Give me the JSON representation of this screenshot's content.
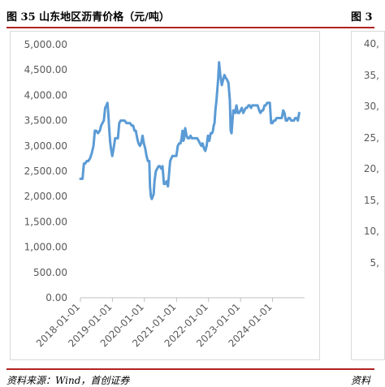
{
  "figure": {
    "title": "图 35 山东地区沥青价格（元/吨）",
    "source": "资料来源：Wind，首创证券",
    "next_title": "图 3",
    "next_source": "资料",
    "next_ticks": [
      "40,",
      "35,",
      "30,",
      "25,",
      "20,",
      "15,",
      "10,",
      "5,"
    ]
  },
  "chart_data": {
    "type": "line",
    "title": "图 35 山东地区沥青价格（元/吨）",
    "xlabel": "",
    "ylabel": "",
    "ylim": [
      0,
      5000
    ],
    "yticks": [
      0,
      500,
      1000,
      1500,
      2000,
      2500,
      3000,
      3500,
      4000,
      4500,
      5000
    ],
    "ytick_labels": [
      "0.00",
      "500.00",
      "1,000.00",
      "1,500.00",
      "2,000.00",
      "2,500.00",
      "3,000.00",
      "3,500.00",
      "4,000.00",
      "4,500.00",
      "5,000.00"
    ],
    "xlim": [
      "2018-01-01",
      "2024-12-31"
    ],
    "xtick_labels": [
      "2018-01-01",
      "2019-01-01",
      "2020-01-01",
      "2021-01-01",
      "2022-01-01",
      "2023-01-01",
      "2024-01-01"
    ],
    "grid": false,
    "legend": "none",
    "colors": {
      "line": "#5b9bd5"
    },
    "series": [
      {
        "x": [
          "2018-01-01",
          "2018-01-25",
          "2018-02-10",
          "2018-02-25",
          "2018-03-15",
          "2018-04-01",
          "2018-04-20",
          "2018-05-10",
          "2018-05-30",
          "2018-06-15",
          "2018-07-01",
          "2018-07-20",
          "2018-08-10",
          "2018-08-25",
          "2018-09-10",
          "2018-09-25",
          "2018-10-10",
          "2018-10-25",
          "2018-11-05",
          "2018-11-15",
          "2018-11-25",
          "2018-12-05",
          "2018-12-15",
          "2018-12-30",
          "2019-01-15",
          "2019-02-01",
          "2019-02-20",
          "2019-03-05",
          "2019-03-20",
          "2019-04-05",
          "2019-04-20",
          "2019-05-01",
          "2019-05-20",
          "2019-06-10",
          "2019-07-01",
          "2019-07-20",
          "2019-08-10",
          "2019-08-25",
          "2019-09-10",
          "2019-09-25",
          "2019-10-10",
          "2019-10-25",
          "2019-11-10",
          "2019-11-25",
          "2019-12-10",
          "2019-12-25",
          "2020-01-10",
          "2020-01-25",
          "2020-02-10",
          "2020-02-25",
          "2020-03-05",
          "2020-03-15",
          "2020-03-25",
          "2020-04-05",
          "2020-04-15",
          "2020-04-25",
          "2020-05-10",
          "2020-05-25",
          "2020-06-10",
          "2020-06-25",
          "2020-07-10",
          "2020-07-25",
          "2020-08-10",
          "2020-08-25",
          "2020-09-10",
          "2020-09-25",
          "2020-10-10",
          "2020-10-20",
          "2020-11-01",
          "2020-11-15",
          "2020-11-30",
          "2020-12-15",
          "2020-12-30",
          "2021-01-15",
          "2021-01-30",
          "2021-02-15",
          "2021-02-28",
          "2021-03-10",
          "2021-03-20",
          "2021-03-30",
          "2021-04-10",
          "2021-04-25",
          "2021-05-10",
          "2021-05-25",
          "2021-06-10",
          "2021-06-25",
          "2021-07-10",
          "2021-07-25",
          "2021-08-10",
          "2021-08-25",
          "2021-09-10",
          "2021-09-25",
          "2021-10-10",
          "2021-10-25",
          "2021-11-10",
          "2021-11-25",
          "2021-12-10",
          "2021-12-25",
          "2022-01-10",
          "2022-01-25",
          "2022-02-10",
          "2022-02-20",
          "2022-03-01",
          "2022-03-10",
          "2022-03-20",
          "2022-04-01",
          "2022-04-10",
          "2022-04-20",
          "2022-05-01",
          "2022-05-15",
          "2022-06-01",
          "2022-06-15",
          "2022-07-01",
          "2022-07-15",
          "2022-08-01",
          "2022-08-15",
          "2022-09-01",
          "2022-09-10",
          "2022-09-20",
          "2022-10-01",
          "2022-10-10",
          "2022-10-20",
          "2022-11-01",
          "2022-11-15",
          "2022-12-01",
          "2022-12-15",
          "2023-01-01",
          "2023-01-15",
          "2023-02-01",
          "2023-02-15",
          "2023-03-01",
          "2023-03-15",
          "2023-04-01",
          "2023-04-15",
          "2023-05-01",
          "2023-05-15",
          "2023-06-01",
          "2023-06-15",
          "2023-07-01",
          "2023-07-15",
          "2023-08-01",
          "2023-08-15",
          "2023-09-01",
          "2023-09-15",
          "2023-10-01",
          "2023-10-15",
          "2023-11-01",
          "2023-11-15",
          "2023-12-01",
          "2023-12-15",
          "2024-01-01",
          "2024-01-15",
          "2024-02-01",
          "2024-02-15",
          "2024-03-01",
          "2024-03-15",
          "2024-04-01",
          "2024-04-15",
          "2024-05-01",
          "2024-05-15",
          "2024-06-01",
          "2024-06-15",
          "2024-07-01",
          "2024-07-15",
          "2024-08-01",
          "2024-08-15",
          "2024-09-01",
          "2024-09-15",
          "2024-10-01",
          "2024-10-15",
          "2024-10-31"
        ],
        "y": [
          2350,
          2350,
          2650,
          2650,
          2700,
          2700,
          2750,
          2850,
          3000,
          3300,
          3300,
          3250,
          3300,
          3400,
          3450,
          3500,
          3750,
          3800,
          3850,
          3650,
          3350,
          3100,
          2950,
          2800,
          2950,
          3150,
          3150,
          3150,
          3450,
          3500,
          3500,
          3500,
          3500,
          3450,
          3450,
          3450,
          3400,
          3400,
          3300,
          3300,
          3150,
          3050,
          3000,
          3050,
          3200,
          3050,
          2950,
          2800,
          2700,
          2700,
          2200,
          2000,
          1950,
          2000,
          2050,
          2300,
          2500,
          2550,
          2600,
          2600,
          2550,
          2600,
          2250,
          2250,
          2300,
          2200,
          2500,
          2700,
          2750,
          2800,
          2800,
          2800,
          2800,
          3000,
          3050,
          3050,
          3150,
          3300,
          3100,
          3150,
          3350,
          3200,
          3150,
          3150,
          3200,
          3150,
          3150,
          3150,
          3150,
          3150,
          3100,
          3050,
          3000,
          3050,
          2950,
          2900,
          3000,
          3200,
          3100,
          3250,
          3250,
          3300,
          3400,
          3450,
          3700,
          3900,
          4100,
          4300,
          4650,
          4400,
          4200,
          4300,
          4400,
          4350,
          4300,
          4250,
          3900,
          3300,
          3250,
          3500,
          3700,
          3700,
          3650,
          3800,
          3650,
          3650,
          3700,
          3750,
          3650,
          3700,
          3750,
          3750,
          3800,
          3800,
          3750,
          3800,
          3800,
          3800,
          3800,
          3800,
          3700,
          3650,
          3700,
          3700,
          3800,
          3800,
          3850,
          3850,
          3850,
          3450,
          3450,
          3500,
          3500,
          3550,
          3550,
          3550,
          3550,
          3550,
          3700,
          3650,
          3500,
          3500,
          3550,
          3550,
          3500,
          3500,
          3500,
          3550,
          3550,
          3500,
          3650
        ]
      }
    ]
  }
}
